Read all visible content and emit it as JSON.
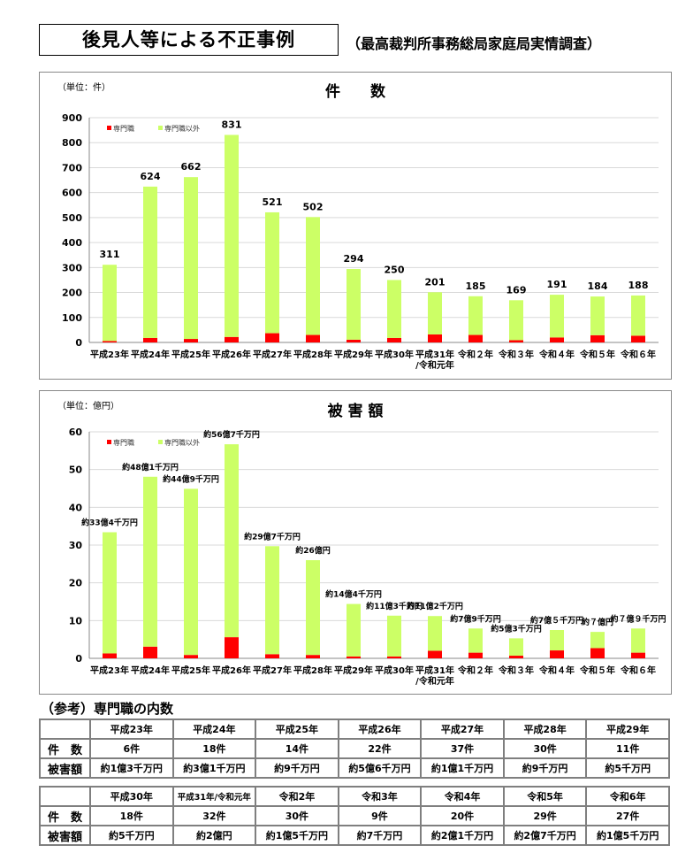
{
  "header": {
    "title": "後見人等による不正事例",
    "source": "（最高裁判所事務総局家庭局実情調査）"
  },
  "chart_data": [
    {
      "type": "bar",
      "stacked": true,
      "title": "件　　数",
      "unit_label": "（単位：件）",
      "ylim": [
        0,
        900
      ],
      "yticks": [
        0,
        100,
        200,
        300,
        400,
        500,
        600,
        700,
        800,
        900
      ],
      "grid": true,
      "legend": "top-left",
      "categories": [
        "平成23年",
        "平成24年",
        "平成25年",
        "平成26年",
        "平成27年",
        "平成28年",
        "平成29年",
        "平成30年",
        "平成31年\n/令和元年",
        "令和２年",
        "令和３年",
        "令和４年",
        "令和５年",
        "令和６年"
      ],
      "series": [
        {
          "name": "専門職",
          "color": "#ff0000",
          "values": [
            6,
            18,
            14,
            22,
            37,
            30,
            11,
            18,
            32,
            30,
            9,
            20,
            29,
            27
          ]
        },
        {
          "name": "専門職以外",
          "color": "#ccff66",
          "values": [
            305,
            606,
            648,
            809,
            484,
            472,
            283,
            232,
            169,
            155,
            160,
            171,
            155,
            161
          ]
        }
      ],
      "totals": [
        311,
        624,
        662,
        831,
        521,
        502,
        294,
        250,
        201,
        185,
        169,
        191,
        184,
        188
      ],
      "data_labels": [
        "311",
        "624",
        "662",
        "831",
        "521",
        "502",
        "294",
        "250",
        "201",
        "185",
        "169",
        "191",
        "184",
        "188"
      ]
    },
    {
      "type": "bar",
      "stacked": true,
      "title": "被 害 額",
      "unit_label": "（単位：億円）",
      "ylim": [
        0,
        60
      ],
      "yticks": [
        0,
        10,
        20,
        30,
        40,
        50,
        60
      ],
      "grid": true,
      "legend": "top-left",
      "categories": [
        "平成23年",
        "平成24年",
        "平成25年",
        "平成26年",
        "平成27年",
        "平成28年",
        "平成29年",
        "平成30年",
        "平成31年\n/令和元年",
        "令和２年",
        "令和３年",
        "令和４年",
        "令和５年",
        "令和６年"
      ],
      "series": [
        {
          "name": "専門職",
          "color": "#ff0000",
          "values": [
            1.3,
            3.1,
            0.9,
            5.6,
            1.1,
            0.9,
            0.5,
            0.5,
            2,
            1.5,
            0.7,
            2.1,
            2.7,
            1.5
          ]
        },
        {
          "name": "専門職以外",
          "color": "#ccff66",
          "values": [
            32.1,
            45,
            44,
            51.1,
            28.6,
            25.1,
            13.9,
            10.8,
            9.2,
            6.4,
            4.6,
            5.4,
            4.3,
            6.4
          ]
        }
      ],
      "totals": [
        33.4,
        48.1,
        44.9,
        56.7,
        29.7,
        26,
        14.4,
        11.3,
        11.2,
        7.9,
        5.3,
        7.5,
        7,
        7.9
      ],
      "data_labels": [
        "約33億4千万円",
        "約48億1千万円",
        "約44億9千万円",
        "約56億7千万円",
        "約29億7千万円",
        "約26億円",
        "約14億4千万円",
        "約11億3千万円",
        "約11億2千万円",
        "約7億9千万円",
        "約5億3千万円",
        "約7億５千万円",
        "約７億円",
        "約７億９千万円"
      ]
    }
  ],
  "reference": {
    "title": "（参考）専門職の内数",
    "row_labels": [
      "件　数",
      "被害額"
    ],
    "table1": {
      "years": [
        "平成23年",
        "平成24年",
        "平成25年",
        "平成26年",
        "平成27年",
        "平成28年",
        "平成29年"
      ],
      "counts": [
        "6件",
        "18件",
        "14件",
        "22件",
        "37件",
        "30件",
        "11件"
      ],
      "amounts": [
        "約1億3千万円",
        "約3億1千万円",
        "約9千万円",
        "約5億6千万円",
        "約1億1千万円",
        "約9千万円",
        "約5千万円"
      ]
    },
    "table2": {
      "years": [
        "平成30年",
        "平成31年/令和元年",
        "令和2年",
        "令和3年",
        "令和4年",
        "令和5年",
        "令和6年"
      ],
      "counts": [
        "18件",
        "32件",
        "30件",
        "9件",
        "20件",
        "29件",
        "27件"
      ],
      "amounts": [
        "約5千万円",
        "約2億円",
        "約1億5千万円",
        "約7千万円",
        "約2億1千万円",
        "約2億7千万円",
        "約1億5千万円"
      ]
    }
  }
}
